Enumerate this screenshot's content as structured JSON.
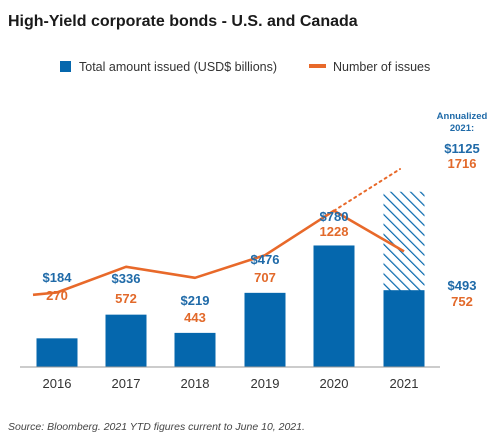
{
  "colors": {
    "bar": "#0567ad",
    "line": "#e8692a",
    "axis": "#999999",
    "amount_label": "#1f6aa8",
    "count_label": "#e2692a"
  },
  "chart_data": {
    "type": "bar",
    "title": "High-Yield corporate bonds - U.S. and Canada",
    "categories": [
      "2016",
      "2017",
      "2018",
      "2019",
      "2020",
      "2021"
    ],
    "series": [
      {
        "name": "Total amount issued (USD$ billions)",
        "type": "bar",
        "values": [
          184,
          336,
          219,
          476,
          780,
          493
        ],
        "labels": [
          "$184",
          "$336",
          "$219",
          "$476",
          "$780",
          "$493"
        ]
      },
      {
        "name": "Number of issues",
        "type": "line",
        "values": [
          270,
          572,
          443,
          707,
          1228,
          752
        ],
        "labels": [
          "270",
          "572",
          "443",
          "707",
          "1228",
          "752"
        ]
      }
    ],
    "annualized": {
      "category": "2021",
      "label": "Annualized 2021:",
      "amount": 1125,
      "amount_label": "$1125",
      "count": 1716,
      "count_label": "1716"
    },
    "legend_position": "top",
    "grid": false,
    "ylim_amount": [
      0,
      1200
    ],
    "ylim_count": [
      0,
      1800
    ]
  },
  "source": "Source: Bloomberg. 2021 YTD figures current to June 10, 2021."
}
